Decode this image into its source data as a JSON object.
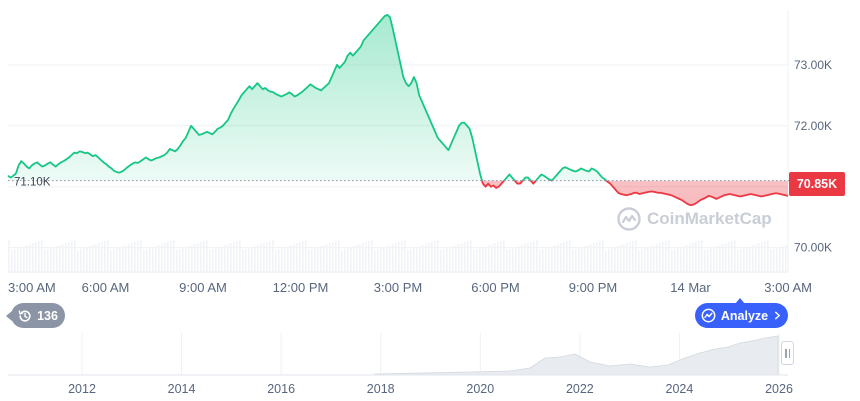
{
  "chart_data": {
    "type": "line",
    "x_labels": [
      "3:00 AM",
      "6:00 AM",
      "9:00 AM",
      "12:00 PM",
      "3:00 PM",
      "6:00 PM",
      "9:00 PM",
      "14 Mar",
      "3:00 AM"
    ],
    "y_ticks": [
      70000,
      71000,
      72000,
      73000
    ],
    "y_tick_labels": [
      "70.00K",
      "71.00K",
      "72.00K",
      "73.00K"
    ],
    "ylim": [
      69600,
      73900
    ],
    "reference_value": 71100,
    "reference_label": "71.10K",
    "current_value": 70850,
    "current_label": "70.85K",
    "above_color": "#16c784",
    "below_color": "#ea3943",
    "series": [
      {
        "values": [
          71180,
          71150,
          71180,
          71220,
          71350,
          71420,
          71380,
          71330,
          71300,
          71350,
          71380,
          71400,
          71360,
          71330,
          71350,
          71380,
          71400,
          71360,
          71330,
          71370,
          71400,
          71420,
          71450,
          71480,
          71520,
          71560,
          71550,
          71580,
          71570,
          71550,
          71560,
          71530,
          71500,
          71520,
          71480,
          71440,
          71400,
          71370,
          71330,
          71300,
          71260,
          71240,
          71230,
          71250,
          71280,
          71320,
          71350,
          71380,
          71400,
          71390,
          71420,
          71450,
          71480,
          71450,
          71430,
          71450,
          71470,
          71480,
          71500,
          71520,
          71560,
          71620,
          71600,
          71580,
          71620,
          71680,
          71750,
          71800,
          71900,
          72000,
          71950,
          71900,
          71850,
          71860,
          71880,
          71900,
          71880,
          71860,
          71900,
          71950,
          71970,
          72000,
          72050,
          72100,
          72200,
          72280,
          72350,
          72420,
          72500,
          72550,
          72600,
          72650,
          72600,
          72650,
          72700,
          72650,
          72600,
          72620,
          72580,
          72560,
          72550,
          72520,
          72500,
          72480,
          72500,
          72520,
          72550,
          72520,
          72480,
          72500,
          72530,
          72560,
          72600,
          72640,
          72680,
          72650,
          72620,
          72600,
          72580,
          72620,
          72660,
          72700,
          72800,
          72900,
          73000,
          72950,
          73000,
          73050,
          73150,
          73200,
          73150,
          73200,
          73250,
          73300,
          73400,
          73450,
          73500,
          73550,
          73600,
          73650,
          73700,
          73750,
          73800,
          73820,
          73780,
          73600,
          73400,
          73200,
          73000,
          72800,
          72700,
          72650,
          72700,
          72800,
          72700,
          72500,
          72400,
          72300,
          72200,
          72100,
          72000,
          71900,
          71800,
          71750,
          71700,
          71650,
          71600,
          71700,
          71800,
          71900,
          72000,
          72050,
          72050,
          72000,
          71950,
          71800,
          71600,
          71400,
          71200,
          71050,
          71000,
          71050,
          71000,
          71020,
          70980,
          71000,
          71050,
          71100,
          71150,
          71200,
          71150,
          71100,
          71050,
          71050,
          71100,
          71150,
          71150,
          71100,
          71050,
          71100,
          71150,
          71200,
          71180,
          71150,
          71120,
          71100,
          71150,
          71200,
          71250,
          71300,
          71320,
          71300,
          71280,
          71260,
          71250,
          71270,
          71300,
          71280,
          71260,
          71250,
          71300,
          71280,
          71250,
          71200,
          71150,
          71120,
          71080,
          71050,
          71000,
          70950,
          70900,
          70880,
          70870,
          70860,
          70870,
          70880,
          70900,
          70900,
          70880,
          70890,
          70900,
          70910,
          70920,
          70920,
          70910,
          70900,
          70900,
          70890,
          70880,
          70870,
          70860,
          70840,
          70820,
          70800,
          70780,
          70750,
          70720,
          70700,
          70700,
          70720,
          70750,
          70780,
          70800,
          70820,
          70850,
          70840,
          70820,
          70800,
          70820,
          70840,
          70860,
          70870,
          70880,
          70870,
          70860,
          70850,
          70840,
          70850,
          70860,
          70870,
          70880,
          70870,
          70860,
          70850,
          70840,
          70850,
          70860,
          70870,
          70880,
          70890,
          70890,
          70880,
          70870,
          70860,
          70850
        ]
      }
    ]
  },
  "navigator": {
    "year_labels": [
      "2012",
      "2014",
      "2016",
      "2018",
      "2020",
      "2022",
      "2024",
      "2026"
    ]
  },
  "badges": {
    "count": "136",
    "analyze_label": "Analyze"
  },
  "watermark": {
    "text": "CoinMarketCap"
  }
}
